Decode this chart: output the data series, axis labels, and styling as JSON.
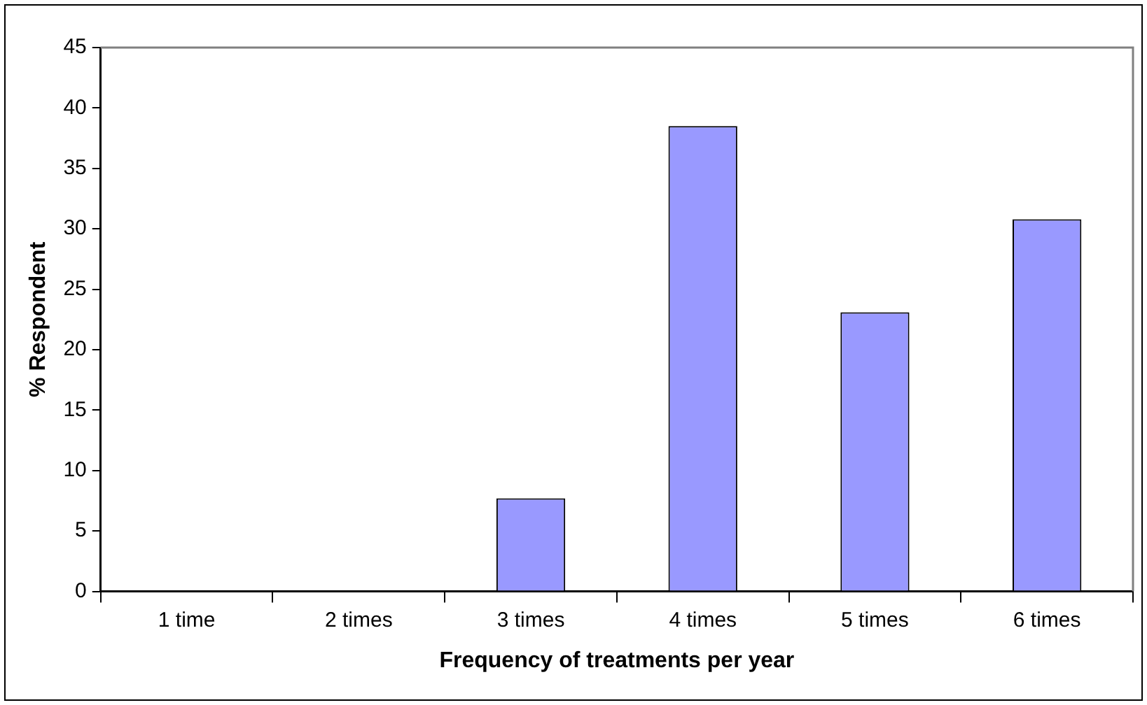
{
  "chart_data": {
    "type": "bar",
    "xlabel": "Frequency of treatments per year",
    "ylabel": "% Respondent",
    "categories": [
      "1 time",
      "2 times",
      "3 times",
      "4 times",
      "5 times",
      "6 times"
    ],
    "values": [
      0,
      0,
      7.7,
      38.5,
      23.1,
      30.8
    ],
    "color": "#9999ff",
    "ylim": [
      0,
      45
    ],
    "yticks": [
      0,
      5,
      10,
      15,
      20,
      25,
      30,
      35,
      40,
      45
    ],
    "grid": false,
    "legend": false
  }
}
